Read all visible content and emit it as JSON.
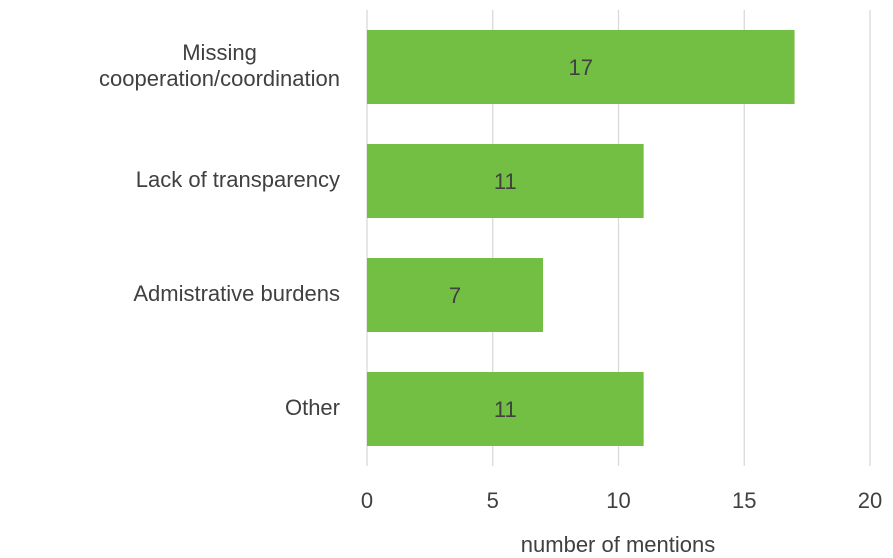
{
  "chart_data": {
    "type": "hbar",
    "categories": [
      "Missing cooperation/coordination",
      "Lack of transparency",
      "Admistrative burdens",
      "Other"
    ],
    "values": [
      17,
      11,
      7,
      11
    ],
    "color": "#72bf44",
    "x_label": "number of  mentions",
    "xlim": [
      0,
      20
    ],
    "xticks": [
      0,
      5,
      10,
      15,
      20
    ],
    "grid": true
  }
}
